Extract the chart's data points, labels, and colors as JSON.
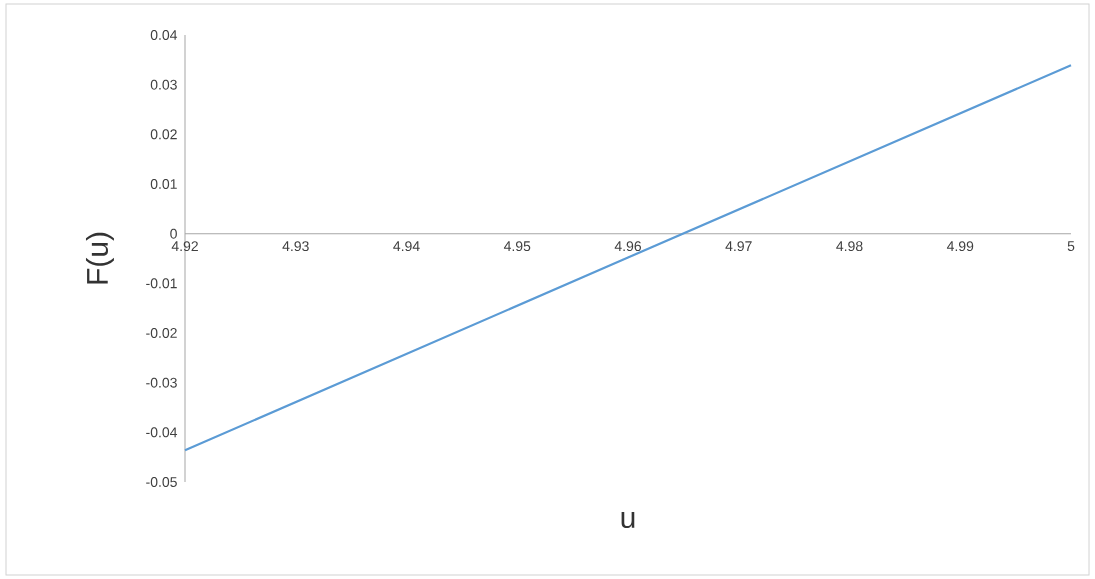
{
  "chart_data": {
    "type": "line",
    "xlabel": "u",
    "ylabel": "F(u)",
    "x": [
      4.92,
      4.96,
      5
    ],
    "series": [
      {
        "color": "#5b9bd5",
        "values": [
          -0.0436,
          -0.0048,
          0.0339
        ]
      }
    ],
    "xlim": [
      4.92,
      5
    ],
    "ylim": [
      -0.05,
      0.04
    ],
    "xticks": [
      4.92,
      4.93,
      4.94,
      4.95,
      4.96,
      4.97,
      4.98,
      4.99,
      5
    ],
    "yticks": [
      -0.05,
      -0.04,
      -0.03,
      -0.02,
      -0.01,
      0,
      0.01,
      0.02,
      0.03,
      0.04
    ]
  }
}
